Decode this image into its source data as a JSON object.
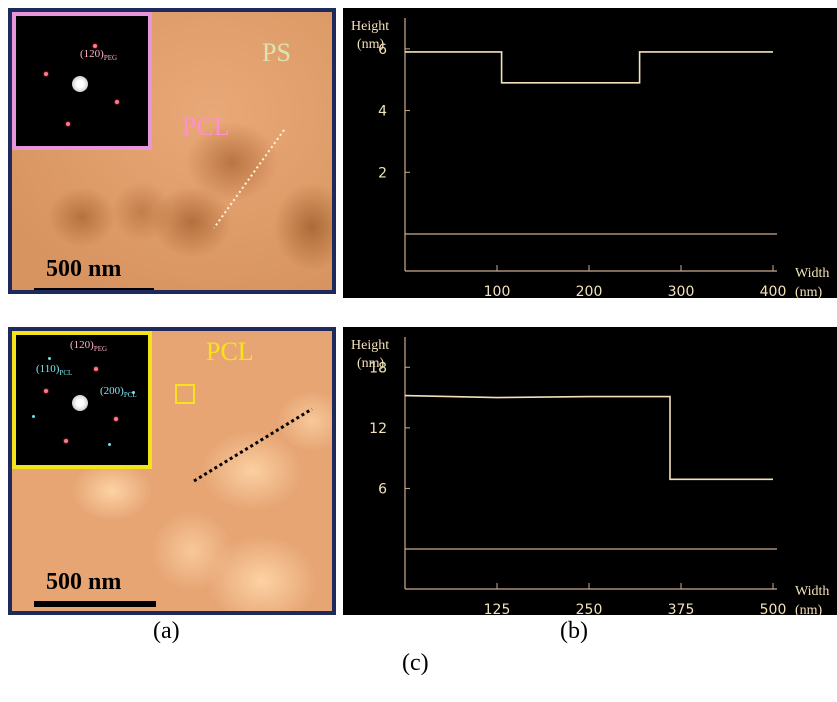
{
  "figure": {
    "label_a": "(a)",
    "label_b": "(b)",
    "label_c": "(c)"
  },
  "micrograph_top": {
    "region_labels": [
      "PS",
      "PCL"
    ],
    "scale_bar": "500 nm",
    "inset": {
      "reflection": "(120)",
      "reflection_sub": "PEG"
    },
    "colors": {
      "border": "#1e2a5c",
      "inset_border": "#e796d8",
      "ps": "#d9e6b0",
      "pcl": "#ff8fd0"
    }
  },
  "micrograph_bottom": {
    "region_labels": [
      "PCL"
    ],
    "scale_bar": "500 nm",
    "inset": {
      "reflections": [
        {
          "index": "(120)",
          "sub": "PEG"
        },
        {
          "index": "(110)",
          "sub": "PCL"
        },
        {
          "index": "(200)",
          "sub": "PCL"
        }
      ]
    },
    "colors": {
      "border": "#1e2a5c",
      "inset_border": "#f2e31a",
      "pcl": "#f7e21c"
    }
  },
  "chart_data": [
    {
      "type": "line",
      "ylabel": "Height",
      "ylabel_unit": "(nm)",
      "xlabel": "Width",
      "xlabel_unit": "(nm)",
      "xlim": [
        0,
        400
      ],
      "ylim": [
        0,
        7
      ],
      "xticks": [
        100,
        200,
        300,
        400
      ],
      "yticks": [
        2,
        4,
        6
      ],
      "series": [
        {
          "x": [
            0,
            105,
            105,
            255,
            255,
            400
          ],
          "y": [
            5.9,
            5.9,
            4.9,
            4.9,
            5.9,
            5.9
          ]
        }
      ],
      "line_color": "#f3e2b8",
      "axis_color": "#c9ad8d",
      "text_color": "#f3e2b8"
    },
    {
      "type": "line",
      "ylabel": "Height",
      "ylabel_unit": "(nm)",
      "xlabel": "Width",
      "xlabel_unit": "(nm)",
      "xlim": [
        0,
        500
      ],
      "ylim": [
        0,
        21
      ],
      "xticks": [
        125,
        250,
        375,
        500
      ],
      "yticks": [
        6,
        12,
        18
      ],
      "series": [
        {
          "x": [
            0,
            125,
            250,
            360,
            360,
            500
          ],
          "y": [
            15.2,
            15.0,
            15.1,
            15.1,
            6.9,
            6.9
          ]
        }
      ],
      "line_color": "#f3e2b8",
      "axis_color": "#c9ad8d",
      "text_color": "#f3e2b8"
    }
  ]
}
